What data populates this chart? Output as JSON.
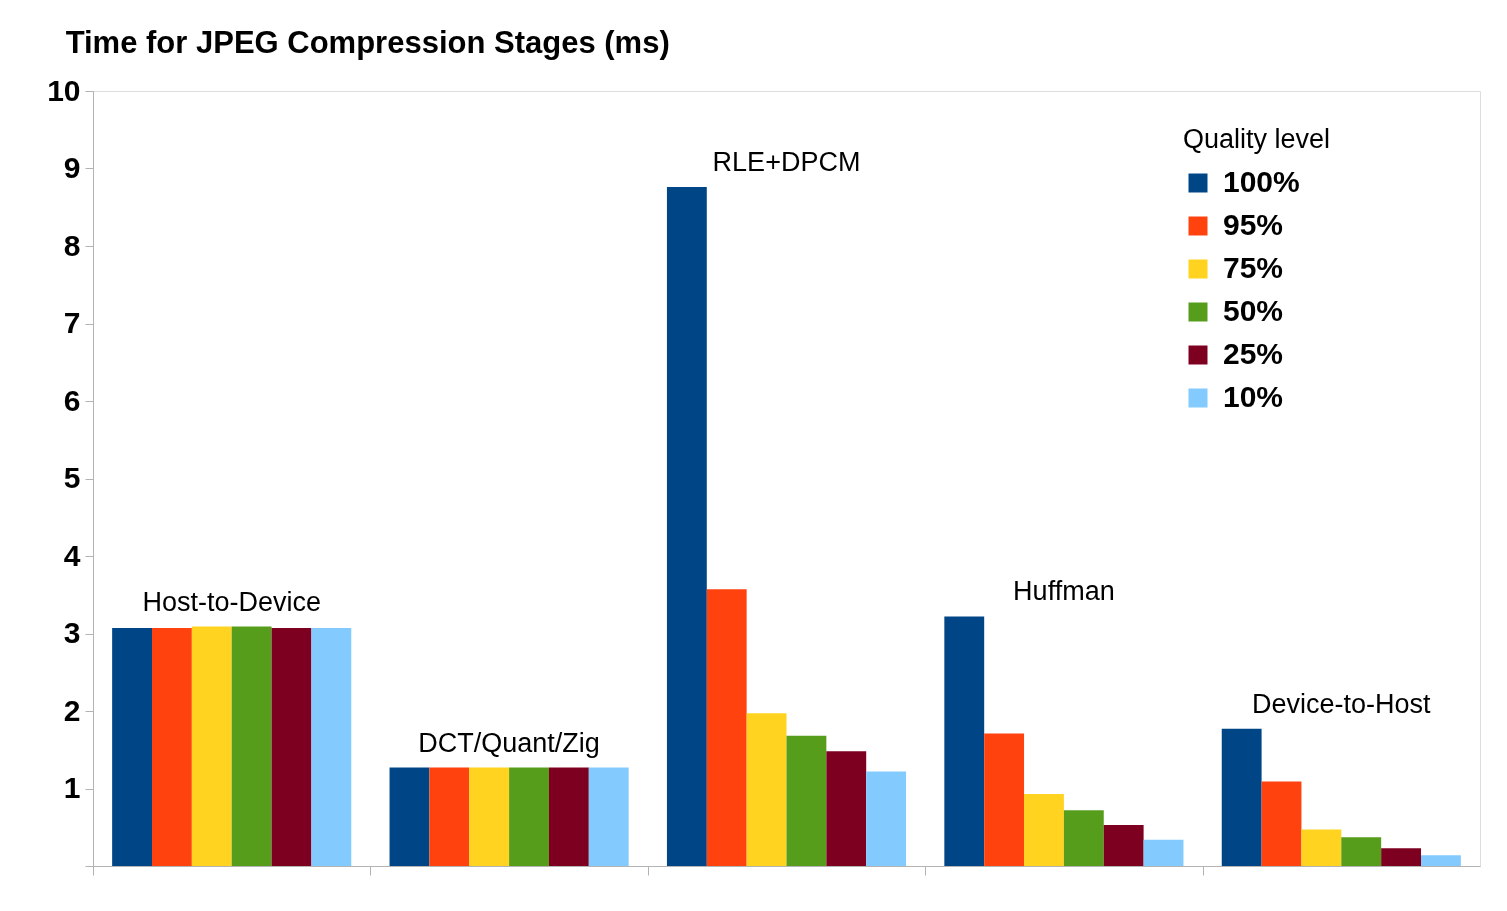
{
  "chart_data": {
    "type": "bar",
    "title": "Time for JPEG Compression Stages (ms)",
    "legend_title": "Quality level",
    "categories": [
      "Host-to-Device",
      "DCT/Quant/Zig",
      "RLE+DPCM",
      "Huffman",
      "Device-to-Host"
    ],
    "series": [
      {
        "name": "100%",
        "color": "#004586",
        "values": [
          3.07,
          1.27,
          8.76,
          3.22,
          1.77
        ]
      },
      {
        "name": "95%",
        "color": "#ff420e",
        "values": [
          3.07,
          1.27,
          3.57,
          1.71,
          1.09
        ]
      },
      {
        "name": "75%",
        "color": "#ffd320",
        "values": [
          3.09,
          1.27,
          1.97,
          0.93,
          0.47
        ]
      },
      {
        "name": "50%",
        "color": "#579d1c",
        "values": [
          3.09,
          1.27,
          1.68,
          0.72,
          0.37
        ]
      },
      {
        "name": "25%",
        "color": "#7e0021",
        "values": [
          3.07,
          1.27,
          1.48,
          0.53,
          0.23
        ]
      },
      {
        "name": "10%",
        "color": "#83caff",
        "values": [
          3.07,
          1.27,
          1.22,
          0.34,
          0.14
        ]
      }
    ],
    "ylim": [
      0,
      10
    ],
    "yticks": [
      {
        "value": 0,
        "label": null
      },
      1,
      2,
      3,
      4,
      5,
      6,
      7,
      8,
      9,
      10
    ],
    "grid": false,
    "legend": "top right"
  }
}
